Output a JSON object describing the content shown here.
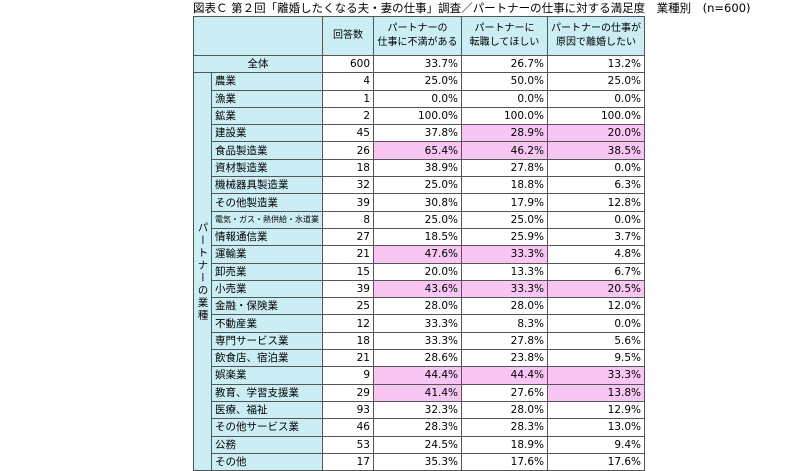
{
  "title": "図表Ｃ 第２回「離婚したくなる夫・妻の仕事」調査／パートナーの仕事に対する満足度　業種別　(n=600)",
  "headers": {
    "respondents": "回答数",
    "col1": [
      "パートナーの",
      "仕事に不満がある"
    ],
    "col2": [
      "パートナーに",
      "転職してほしい"
    ],
    "col3": [
      "パートナーの仕事が",
      "原因で離婚したい"
    ]
  },
  "total": {
    "label": "全体",
    "n": "600",
    "v1": "33.7%",
    "v2": "26.7%",
    "v3": "13.2%"
  },
  "group_label": "パートナーの業種",
  "rows": [
    {
      "label": "農業",
      "n": "4",
      "v1": "25.0%",
      "v2": "50.0%",
      "v3": "25.0%",
      "hl": [
        false,
        false,
        false
      ]
    },
    {
      "label": "漁業",
      "n": "1",
      "v1": "0.0%",
      "v2": "0.0%",
      "v3": "0.0%",
      "hl": [
        false,
        false,
        false
      ]
    },
    {
      "label": "鉱業",
      "n": "2",
      "v1": "100.0%",
      "v2": "100.0%",
      "v3": "100.0%",
      "hl": [
        false,
        false,
        false
      ]
    },
    {
      "label": "建設業",
      "n": "45",
      "v1": "37.8%",
      "v2": "28.9%",
      "v3": "20.0%",
      "hl": [
        false,
        true,
        true
      ]
    },
    {
      "label": "食品製造業",
      "n": "26",
      "v1": "65.4%",
      "v2": "46.2%",
      "v3": "38.5%",
      "hl": [
        true,
        true,
        true
      ]
    },
    {
      "label": "資材製造業",
      "n": "18",
      "v1": "38.9%",
      "v2": "27.8%",
      "v3": "0.0%",
      "hl": [
        false,
        false,
        false
      ]
    },
    {
      "label": "機械器具製造業",
      "n": "32",
      "v1": "25.0%",
      "v2": "18.8%",
      "v3": "6.3%",
      "hl": [
        false,
        false,
        false
      ]
    },
    {
      "label": "その他製造業",
      "n": "39",
      "v1": "30.8%",
      "v2": "17.9%",
      "v3": "12.8%",
      "hl": [
        false,
        false,
        false
      ]
    },
    {
      "label": "電気・ガス・熱供給・水道業",
      "n": "8",
      "v1": "25.0%",
      "v2": "25.0%",
      "v3": "0.0%",
      "hl": [
        false,
        false,
        false
      ],
      "small": true
    },
    {
      "label": "情報通信業",
      "n": "27",
      "v1": "18.5%",
      "v2": "25.9%",
      "v3": "3.7%",
      "hl": [
        false,
        false,
        false
      ]
    },
    {
      "label": "運輸業",
      "n": "21",
      "v1": "47.6%",
      "v2": "33.3%",
      "v3": "4.8%",
      "hl": [
        true,
        true,
        false
      ]
    },
    {
      "label": "卸売業",
      "n": "15",
      "v1": "20.0%",
      "v2": "13.3%",
      "v3": "6.7%",
      "hl": [
        false,
        false,
        false
      ]
    },
    {
      "label": "小売業",
      "n": "39",
      "v1": "43.6%",
      "v2": "33.3%",
      "v3": "20.5%",
      "hl": [
        true,
        true,
        true
      ]
    },
    {
      "label": "金融・保険業",
      "n": "25",
      "v1": "28.0%",
      "v2": "28.0%",
      "v3": "12.0%",
      "hl": [
        false,
        false,
        false
      ]
    },
    {
      "label": "不動産業",
      "n": "12",
      "v1": "33.3%",
      "v2": "8.3%",
      "v3": "0.0%",
      "hl": [
        false,
        false,
        false
      ]
    },
    {
      "label": "専門サービス業",
      "n": "18",
      "v1": "33.3%",
      "v2": "27.8%",
      "v3": "5.6%",
      "hl": [
        false,
        false,
        false
      ]
    },
    {
      "label": "飲食店、宿泊業",
      "n": "21",
      "v1": "28.6%",
      "v2": "23.8%",
      "v3": "9.5%",
      "hl": [
        false,
        false,
        false
      ]
    },
    {
      "label": "娯楽業",
      "n": "9",
      "v1": "44.4%",
      "v2": "44.4%",
      "v3": "33.3%",
      "hl": [
        true,
        true,
        true
      ]
    },
    {
      "label": "教育、学習支援業",
      "n": "29",
      "v1": "41.4%",
      "v2": "27.6%",
      "v3": "13.8%",
      "hl": [
        true,
        false,
        true
      ]
    },
    {
      "label": "医療、福祉",
      "n": "93",
      "v1": "32.3%",
      "v2": "28.0%",
      "v3": "12.9%",
      "hl": [
        false,
        false,
        false
      ]
    },
    {
      "label": "その他サービス業",
      "n": "46",
      "v1": "28.3%",
      "v2": "28.3%",
      "v3": "13.0%",
      "hl": [
        false,
        false,
        false
      ]
    },
    {
      "label": "公務",
      "n": "53",
      "v1": "24.5%",
      "v2": "18.9%",
      "v3": "9.4%",
      "hl": [
        false,
        false,
        false
      ]
    },
    {
      "label": "その他",
      "n": "17",
      "v1": "35.3%",
      "v2": "17.6%",
      "v3": "17.6%",
      "hl": [
        false,
        false,
        false
      ]
    }
  ],
  "colors": {
    "header_bg": "#cbeef5",
    "highlight_bg": "#f7c6f3",
    "border": "#555555"
  }
}
